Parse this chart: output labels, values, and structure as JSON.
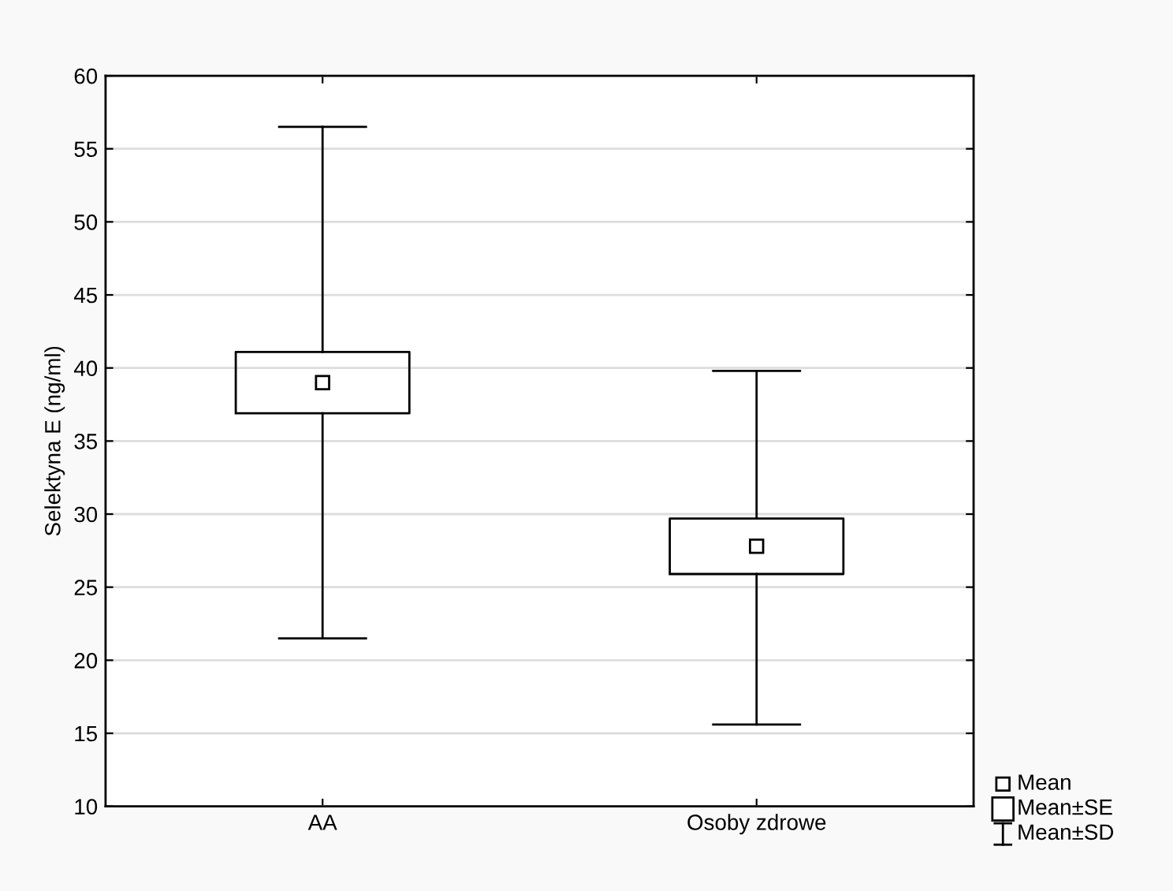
{
  "chart_data": {
    "type": "box",
    "ylabel": "Selektyna E (ng/ml)",
    "categories": [
      "AA",
      "Osoby zdrowe"
    ],
    "boxes": [
      {
        "low": 21.5,
        "q1": 36.9,
        "q3": 41.1,
        "high": 56.5,
        "mean": 39.0
      },
      {
        "low": 15.6,
        "q1": 25.9,
        "q3": 29.7,
        "high": 39.8,
        "mean": 27.8
      }
    ],
    "ylim": [
      10,
      60
    ],
    "yticks": [
      10,
      15,
      20,
      25,
      30,
      35,
      40,
      45,
      50,
      55,
      60
    ],
    "grid": "y",
    "marker": "square",
    "annotations": [
      "Mean",
      "Mean±SE",
      "Mean±SD"
    ]
  }
}
